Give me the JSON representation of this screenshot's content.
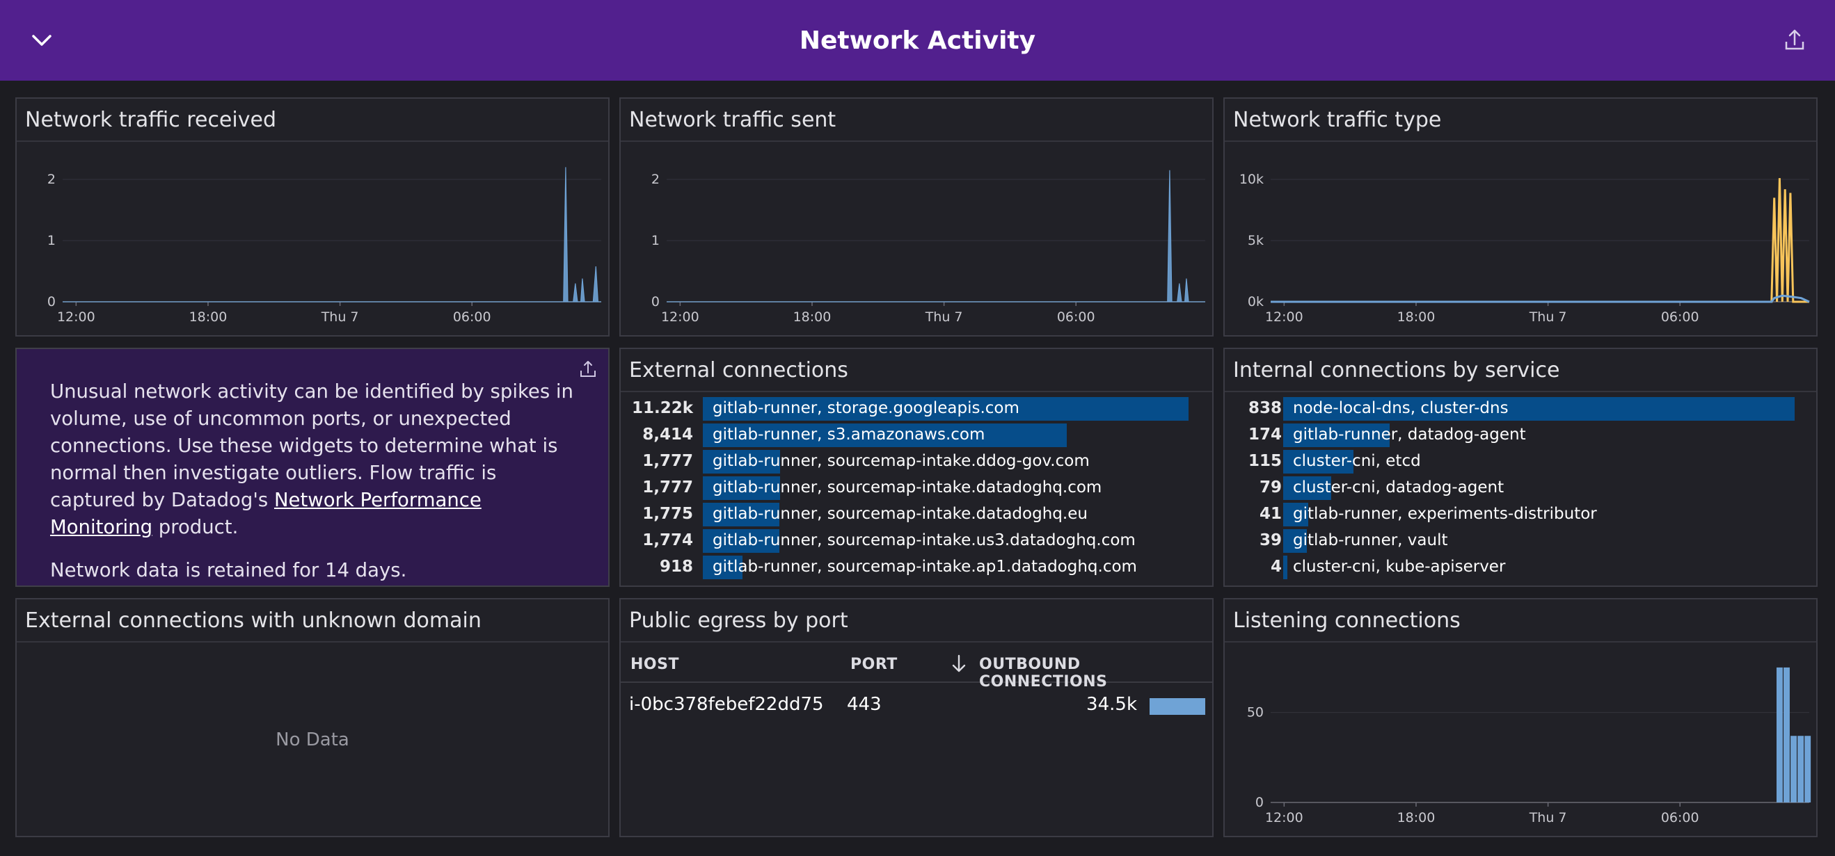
{
  "header": {
    "title": "Network Activity",
    "collapse_icon": "chevron-down-icon",
    "share_icon": "share-icon"
  },
  "colors": {
    "header_bg": "#52208e",
    "series_blue": "#6fa3d6",
    "series_yellow": "#f7c45a",
    "toplist_bar": "#064d8a",
    "note_bg": "#2e1a4d"
  },
  "widgets": {
    "received": {
      "title": "Network traffic received"
    },
    "sent": {
      "title": "Network traffic sent"
    },
    "type": {
      "title": "Network traffic type"
    },
    "note": {
      "text_before_link": "Unusual network activity can be identified by spikes in volume, use of uncommon ports, or unexpected connections. Use these widgets to determine what is normal then investigate outliers. Flow traffic is captured by Datadog's ",
      "link_text": "Network Performance Monitoring",
      "text_after_link": " product.",
      "retention": "Network data is retained for 14 days."
    },
    "external": {
      "title": "External connections",
      "rows": [
        {
          "value": "11.22k",
          "label": "gitlab-runner, storage.googleapis.com",
          "n": 11220
        },
        {
          "value": "8,414",
          "label": "gitlab-runner, s3.amazonaws.com",
          "n": 8414
        },
        {
          "value": "1,777",
          "label": "gitlab-runner, sourcemap-intake.ddog-gov.com",
          "n": 1777
        },
        {
          "value": "1,777",
          "label": "gitlab-runner, sourcemap-intake.datadoghq.com",
          "n": 1777
        },
        {
          "value": "1,775",
          "label": "gitlab-runner, sourcemap-intake.datadoghq.eu",
          "n": 1775
        },
        {
          "value": "1,774",
          "label": "gitlab-runner, sourcemap-intake.us3.datadoghq.com",
          "n": 1774
        },
        {
          "value": "918",
          "label": "gitlab-runner, sourcemap-intake.ap1.datadoghq.com",
          "n": 918
        }
      ]
    },
    "internal": {
      "title": "Internal connections by service",
      "rows": [
        {
          "value": "838",
          "label": "node-local-dns, cluster-dns",
          "n": 838
        },
        {
          "value": "174",
          "label": "gitlab-runner, datadog-agent",
          "n": 174
        },
        {
          "value": "115",
          "label": "cluster-cni, etcd",
          "n": 115
        },
        {
          "value": "79",
          "label": "cluster-cni, datadog-agent",
          "n": 79
        },
        {
          "value": "41",
          "label": "gitlab-runner, experiments-distributor",
          "n": 41
        },
        {
          "value": "39",
          "label": "gitlab-runner, vault",
          "n": 39
        },
        {
          "value": "4",
          "label": "cluster-cni, kube-apiserver",
          "n": 4
        }
      ]
    },
    "unknown": {
      "title": "External connections with unknown domain",
      "empty_text": "No Data"
    },
    "egress": {
      "title": "Public egress by port",
      "columns": {
        "host": "HOST",
        "port": "PORT",
        "outbound": "OUTBOUND CONNECTIONS"
      },
      "sort_icon": "arrow-down-icon",
      "rows": [
        {
          "host": "i-0bc378febef22dd75",
          "port": "443",
          "outbound": "34.5k",
          "fill": 1.0
        }
      ]
    },
    "listening": {
      "title": "Listening connections"
    }
  },
  "chart_data": [
    {
      "id": "received",
      "type": "area",
      "title": "Network traffic received",
      "x_ticks": [
        "12:00",
        "18:00",
        "Thu 7",
        "06:00"
      ],
      "y_ticks": [
        "0",
        "1",
        "2"
      ],
      "ylim": [
        0,
        2.5
      ],
      "grid": true,
      "series": [
        {
          "color": "#6fa3d6",
          "x": [
            0.0,
            0.93,
            0.934,
            0.938,
            0.948,
            0.952,
            0.956,
            0.962,
            0.965,
            0.969,
            0.985,
            0.99,
            0.994,
            1.0
          ],
          "values": [
            0,
            0,
            2.2,
            0,
            0,
            0.3,
            0,
            0,
            0.38,
            0,
            0,
            0.58,
            0,
            0
          ]
        }
      ]
    },
    {
      "id": "sent",
      "type": "area",
      "title": "Network traffic sent",
      "x_ticks": [
        "12:00",
        "18:00",
        "Thu 7",
        "06:00"
      ],
      "y_ticks": [
        "0",
        "1",
        "2"
      ],
      "ylim": [
        0,
        2.5
      ],
      "grid": true,
      "series": [
        {
          "color": "#6fa3d6",
          "x": [
            0.0,
            0.93,
            0.934,
            0.938,
            0.948,
            0.952,
            0.956,
            0.962,
            0.965,
            0.969,
            1.0
          ],
          "values": [
            0,
            0,
            2.15,
            0,
            0,
            0.3,
            0,
            0,
            0.38,
            0,
            0
          ]
        }
      ]
    },
    {
      "id": "type",
      "type": "line",
      "title": "Network traffic type",
      "x_ticks": [
        "12:00",
        "18:00",
        "Thu 7",
        "06:00"
      ],
      "y_ticks": [
        "0k",
        "5k",
        "10k"
      ],
      "ylim": [
        0,
        12500
      ],
      "grid": true,
      "series": [
        {
          "color": "#f7c45a",
          "x": [
            0.0,
            0.93,
            0.935,
            0.94,
            0.945,
            0.95,
            0.955,
            0.96,
            0.965,
            0.97,
            0.975,
            1.0
          ],
          "values": [
            0,
            0,
            8500,
            0,
            10100,
            0,
            9200,
            0,
            8900,
            0,
            0,
            0
          ]
        },
        {
          "color": "#6fa3d6",
          "x": [
            0.0,
            0.93,
            0.935,
            0.95,
            0.97,
            0.985,
            1.0
          ],
          "values": [
            0,
            0,
            300,
            500,
            400,
            300,
            0
          ]
        }
      ]
    },
    {
      "id": "listening",
      "type": "bar",
      "title": "Listening connections",
      "x_ticks": [
        "12:00",
        "18:00",
        "Thu 7",
        "06:00"
      ],
      "y_ticks": [
        "0",
        "50"
      ],
      "ylim": [
        0,
        85
      ],
      "grid": true,
      "series": [
        {
          "color": "#6fa3d6",
          "x": [
            0.945,
            0.958,
            0.971,
            0.984,
            0.997
          ],
          "values": [
            75,
            75,
            37,
            37,
            37
          ]
        }
      ]
    }
  ]
}
